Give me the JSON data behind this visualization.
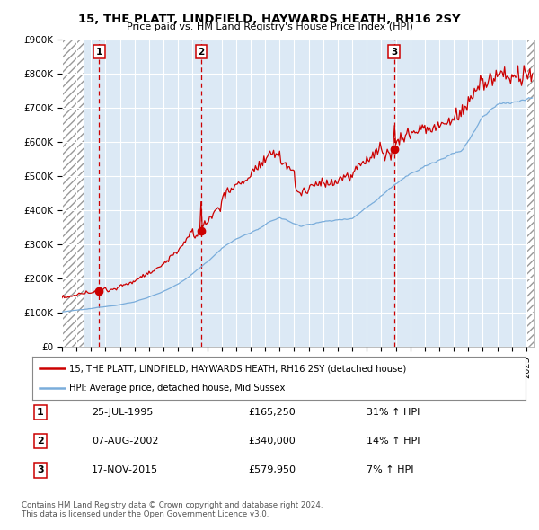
{
  "title": "15, THE PLATT, LINDFIELD, HAYWARDS HEATH, RH16 2SY",
  "subtitle": "Price paid vs. HM Land Registry's House Price Index (HPI)",
  "background_color": "#ffffff",
  "plot_bg_color": "#dce9f5",
  "grid_color": "#ffffff",
  "ylim": [
    0,
    900000
  ],
  "yticks": [
    0,
    100000,
    200000,
    300000,
    400000,
    500000,
    600000,
    700000,
    800000,
    900000
  ],
  "ytick_labels": [
    "£0",
    "£100K",
    "£200K",
    "£300K",
    "£400K",
    "£500K",
    "£600K",
    "£700K",
    "£800K",
    "£900K"
  ],
  "xlim_start": 1993.0,
  "xlim_end": 2025.5,
  "xtick_years": [
    1993,
    1994,
    1995,
    1996,
    1997,
    1998,
    1999,
    2000,
    2001,
    2002,
    2003,
    2004,
    2005,
    2006,
    2007,
    2008,
    2009,
    2010,
    2011,
    2012,
    2013,
    2014,
    2015,
    2016,
    2017,
    2018,
    2019,
    2020,
    2021,
    2022,
    2023,
    2024,
    2025
  ],
  "red_line_color": "#cc0000",
  "blue_line_color": "#7aaddb",
  "sale_marker_color": "#cc0000",
  "dashed_line_color": "#cc0000",
  "sale1_date": 1995.56,
  "sale1_price": 165250,
  "sale2_date": 2002.6,
  "sale2_price": 340000,
  "sale3_date": 2015.88,
  "sale3_price": 579950,
  "table_rows": [
    [
      "1",
      "25-JUL-1995",
      "£165,250",
      "31% ↑ HPI"
    ],
    [
      "2",
      "07-AUG-2002",
      "£340,000",
      "14% ↑ HPI"
    ],
    [
      "3",
      "17-NOV-2015",
      "£579,950",
      "7% ↑ HPI"
    ]
  ],
  "legend_line1": "15, THE PLATT, LINDFIELD, HAYWARDS HEATH, RH16 2SY (detached house)",
  "legend_line2": "HPI: Average price, detached house, Mid Sussex",
  "footer": "Contains HM Land Registry data © Crown copyright and database right 2024.\nThis data is licensed under the Open Government Licence v3.0."
}
